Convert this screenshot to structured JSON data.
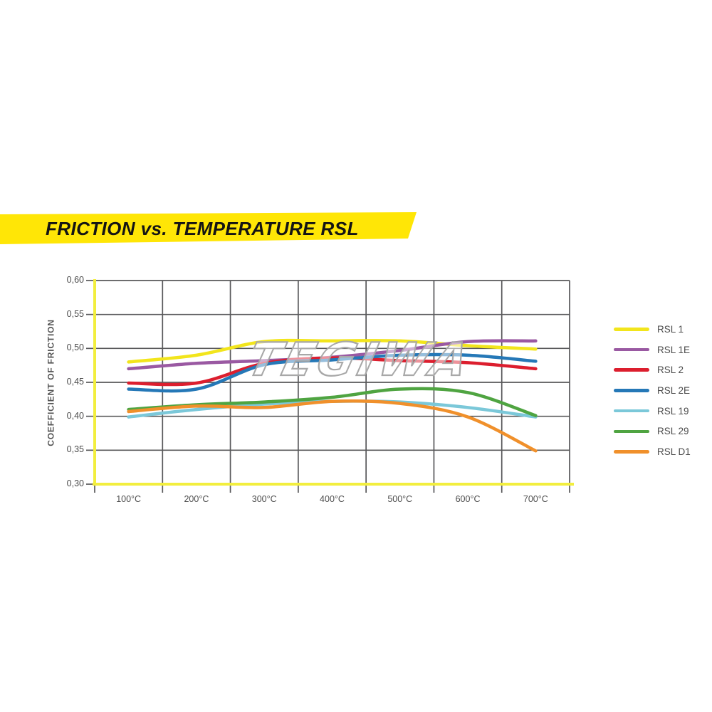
{
  "banner": {
    "title": "FRICTION vs. TEMPERATURE RSL",
    "color": "#ffe606",
    "text_color": "#141414"
  },
  "watermark": {
    "text": "TEGIWA"
  },
  "chart_data": {
    "type": "line",
    "title": "FRICTION vs. TEMPERATURE RSL",
    "xlabel": "",
    "ylabel": "COEFFICIENT OF FRICTION",
    "x_categories": [
      "100°C",
      "200°C",
      "300°C",
      "400°C",
      "500°C",
      "600°C",
      "700°C"
    ],
    "y_ticks": {
      "labels": [
        "0,60",
        "0,55",
        "0,50",
        "0,45",
        "0,40",
        "0,35",
        "0,30"
      ],
      "values": [
        0.6,
        0.55,
        0.5,
        0.45,
        0.4,
        0.35,
        0.3
      ]
    },
    "ylim": [
      0.3,
      0.6
    ],
    "grid": true,
    "legend_position": "right",
    "axis_color": "#f2ee3e",
    "gridline_color": "#58585a",
    "series": [
      {
        "name": "RSL 1",
        "color": "#f2e51c",
        "values": [
          0.48,
          0.49,
          0.51,
          0.511,
          0.511,
          0.504,
          0.499
        ]
      },
      {
        "name": "RSL 1E",
        "color": "#9a59a2",
        "values": [
          0.47,
          0.478,
          0.482,
          0.487,
          0.497,
          0.51,
          0.511
        ]
      },
      {
        "name": "RSL 2",
        "color": "#dc1e2e",
        "values": [
          0.449,
          0.449,
          0.478,
          0.486,
          0.482,
          0.479,
          0.47
        ]
      },
      {
        "name": "RSL 2E",
        "color": "#2578b7",
        "values": [
          0.44,
          0.44,
          0.476,
          0.483,
          0.49,
          0.49,
          0.481
        ]
      },
      {
        "name": "RSL 19",
        "color": "#7bc8d9",
        "values": [
          0.399,
          0.41,
          0.418,
          0.422,
          0.421,
          0.413,
          0.399
        ]
      },
      {
        "name": "RSL 29",
        "color": "#4fa441",
        "values": [
          0.41,
          0.417,
          0.421,
          0.428,
          0.44,
          0.435,
          0.401
        ]
      },
      {
        "name": "RSL D1",
        "color": "#f0902b",
        "values": [
          0.407,
          0.415,
          0.413,
          0.422,
          0.419,
          0.399,
          0.349
        ]
      }
    ]
  }
}
